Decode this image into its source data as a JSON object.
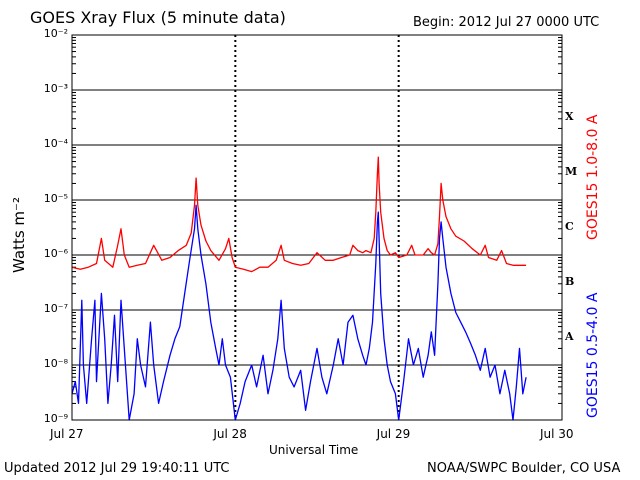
{
  "title": "GOES Xray Flux (5 minute data)",
  "begin_label": "Begin:  2012 Jul 27 0000 UTC",
  "updated_label": "Updated 2012 Jul 29 19:40:11 UTC",
  "credit_label": "NOAA/SWPC Boulder, CO USA",
  "chart_data": {
    "type": "line",
    "title": "GOES Xray Flux (5 minute data)",
    "xlabel": "Universal Time",
    "ylabel": "Watts m⁻²",
    "y_scale": "log",
    "ylim": [
      1e-09,
      0.01
    ],
    "xlim": [
      0,
      3
    ],
    "x_unit": "days since 2012 Jul 27 0000 UTC",
    "x_ticks": [
      {
        "x": 0,
        "label": "Jul 27"
      },
      {
        "x": 1,
        "label": "Jul 28"
      },
      {
        "x": 2,
        "label": "Jul 29"
      },
      {
        "x": 3,
        "label": "Jul 30"
      }
    ],
    "y_ticks": [
      {
        "exp": -2,
        "label": "10⁻²"
      },
      {
        "exp": -3,
        "label": "10⁻³"
      },
      {
        "exp": -4,
        "label": "10⁻⁴"
      },
      {
        "exp": -5,
        "label": "10⁻⁵"
      },
      {
        "exp": -6,
        "label": "10⁻⁶"
      },
      {
        "exp": -7,
        "label": "10⁻⁷"
      },
      {
        "exp": -8,
        "label": "10⁻⁸"
      },
      {
        "exp": -9,
        "label": "10⁻⁹"
      }
    ],
    "flare_classes": [
      {
        "label": "X",
        "exp": -3.5
      },
      {
        "label": "M",
        "exp": -4.5
      },
      {
        "label": "C",
        "exp": -5.5
      },
      {
        "label": "B",
        "exp": -6.5
      },
      {
        "label": "A",
        "exp": -7.5
      }
    ],
    "series": [
      {
        "name": "GOES15 1.0-8.0 A",
        "color": "#ff0000",
        "points": [
          [
            0.0,
            6e-07
          ],
          [
            0.05,
            5.5e-07
          ],
          [
            0.1,
            6e-07
          ],
          [
            0.15,
            7e-07
          ],
          [
            0.18,
            2e-06
          ],
          [
            0.2,
            8e-07
          ],
          [
            0.25,
            6e-07
          ],
          [
            0.28,
            1.5e-06
          ],
          [
            0.3,
            3e-06
          ],
          [
            0.32,
            1e-06
          ],
          [
            0.35,
            6e-07
          ],
          [
            0.4,
            6.5e-07
          ],
          [
            0.45,
            7e-07
          ],
          [
            0.5,
            1.5e-06
          ],
          [
            0.55,
            8e-07
          ],
          [
            0.6,
            9e-07
          ],
          [
            0.65,
            1.2e-06
          ],
          [
            0.7,
            1.5e-06
          ],
          [
            0.73,
            2.5e-06
          ],
          [
            0.75,
            8e-06
          ],
          [
            0.76,
            2.5e-05
          ],
          [
            0.77,
            8e-06
          ],
          [
            0.79,
            3.5e-06
          ],
          [
            0.82,
            1.8e-06
          ],
          [
            0.85,
            1.2e-06
          ],
          [
            0.9,
            8e-07
          ],
          [
            0.94,
            1.3e-06
          ],
          [
            0.96,
            2e-06
          ],
          [
            0.98,
            9e-07
          ],
          [
            1.0,
            6e-07
          ],
          [
            1.05,
            5.5e-07
          ],
          [
            1.1,
            5e-07
          ],
          [
            1.15,
            6e-07
          ],
          [
            1.2,
            6e-07
          ],
          [
            1.25,
            8e-07
          ],
          [
            1.28,
            1.5e-06
          ],
          [
            1.3,
            8e-07
          ],
          [
            1.35,
            7e-07
          ],
          [
            1.4,
            6.5e-07
          ],
          [
            1.45,
            7e-07
          ],
          [
            1.5,
            1.1e-06
          ],
          [
            1.55,
            8e-07
          ],
          [
            1.6,
            8e-07
          ],
          [
            1.65,
            9e-07
          ],
          [
            1.7,
            1e-06
          ],
          [
            1.72,
            1.5e-06
          ],
          [
            1.75,
            1.2e-06
          ],
          [
            1.78,
            1.1e-06
          ],
          [
            1.8,
            1.2e-06
          ],
          [
            1.83,
            1.1e-06
          ],
          [
            1.85,
            2e-06
          ],
          [
            1.86,
            6e-06
          ],
          [
            1.87,
            3e-05
          ],
          [
            1.875,
            6e-05
          ],
          [
            1.88,
            2e-05
          ],
          [
            1.89,
            6e-06
          ],
          [
            1.91,
            2e-06
          ],
          [
            1.93,
            1.2e-06
          ],
          [
            1.95,
            1e-06
          ],
          [
            1.98,
            1.1e-06
          ],
          [
            2.0,
            9e-07
          ],
          [
            2.05,
            1e-06
          ],
          [
            2.08,
            1.5e-06
          ],
          [
            2.1,
            1e-06
          ],
          [
            2.15,
            1e-06
          ],
          [
            2.18,
            1.3e-06
          ],
          [
            2.2,
            1.1e-06
          ],
          [
            2.22,
            1e-06
          ],
          [
            2.24,
            1.6e-06
          ],
          [
            2.25,
            5e-06
          ],
          [
            2.26,
            2e-05
          ],
          [
            2.27,
            1e-05
          ],
          [
            2.29,
            5e-06
          ],
          [
            2.32,
            3e-06
          ],
          [
            2.35,
            2.2e-06
          ],
          [
            2.4,
            1.8e-06
          ],
          [
            2.45,
            1.3e-06
          ],
          [
            2.5,
            1e-06
          ],
          [
            2.53,
            1.5e-06
          ],
          [
            2.55,
            9e-07
          ],
          [
            2.6,
            8e-07
          ],
          [
            2.63,
            1.2e-06
          ],
          [
            2.66,
            7e-07
          ],
          [
            2.7,
            6.5e-07
          ],
          [
            2.75,
            6.5e-07
          ],
          [
            2.78,
            6.5e-07
          ]
        ]
      },
      {
        "name": "GOES15 0.5-4.0 A",
        "color": "#0000ff",
        "points": [
          [
            0.0,
            3e-09
          ],
          [
            0.02,
            5e-09
          ],
          [
            0.04,
            2e-09
          ],
          [
            0.06,
            1.5e-07
          ],
          [
            0.07,
            1e-08
          ],
          [
            0.09,
            2e-09
          ],
          [
            0.12,
            3e-08
          ],
          [
            0.14,
            1.5e-07
          ],
          [
            0.15,
            5e-09
          ],
          [
            0.18,
            2e-07
          ],
          [
            0.2,
            3e-08
          ],
          [
            0.22,
            2e-09
          ],
          [
            0.24,
            1e-08
          ],
          [
            0.26,
            8e-08
          ],
          [
            0.28,
            5e-09
          ],
          [
            0.3,
            1.5e-07
          ],
          [
            0.32,
            2e-08
          ],
          [
            0.35,
            1e-09
          ],
          [
            0.38,
            3e-09
          ],
          [
            0.4,
            3e-08
          ],
          [
            0.42,
            1e-08
          ],
          [
            0.45,
            4e-09
          ],
          [
            0.48,
            6e-08
          ],
          [
            0.5,
            1e-08
          ],
          [
            0.53,
            2e-09
          ],
          [
            0.56,
            5e-09
          ],
          [
            0.6,
            1.5e-08
          ],
          [
            0.63,
            3e-08
          ],
          [
            0.66,
            5e-08
          ],
          [
            0.69,
            2e-07
          ],
          [
            0.72,
            8e-07
          ],
          [
            0.75,
            3e-06
          ],
          [
            0.76,
            8e-06
          ],
          [
            0.77,
            3e-06
          ],
          [
            0.79,
            1e-06
          ],
          [
            0.82,
            3e-07
          ],
          [
            0.85,
            6e-08
          ],
          [
            0.88,
            2e-08
          ],
          [
            0.9,
            1e-08
          ],
          [
            0.92,
            3e-08
          ],
          [
            0.94,
            1e-08
          ],
          [
            0.97,
            6e-09
          ],
          [
            1.0,
            1e-09
          ],
          [
            1.03,
            2e-09
          ],
          [
            1.06,
            5e-09
          ],
          [
            1.1,
            1e-08
          ],
          [
            1.13,
            4e-09
          ],
          [
            1.17,
            1.5e-08
          ],
          [
            1.2,
            3e-09
          ],
          [
            1.23,
            8e-09
          ],
          [
            1.26,
            3e-08
          ],
          [
            1.28,
            1.5e-07
          ],
          [
            1.3,
            2e-08
          ],
          [
            1.33,
            6e-09
          ],
          [
            1.36,
            4e-09
          ],
          [
            1.4,
            8e-09
          ],
          [
            1.43,
            1.5e-09
          ],
          [
            1.46,
            5e-09
          ],
          [
            1.5,
            2e-08
          ],
          [
            1.53,
            6e-09
          ],
          [
            1.56,
            3e-09
          ],
          [
            1.6,
            1e-08
          ],
          [
            1.63,
            3e-08
          ],
          [
            1.66,
            1e-08
          ],
          [
            1.69,
            6e-08
          ],
          [
            1.72,
            8e-08
          ],
          [
            1.75,
            3e-08
          ],
          [
            1.78,
            1.5e-08
          ],
          [
            1.8,
            1e-08
          ],
          [
            1.82,
            2e-08
          ],
          [
            1.84,
            6e-08
          ],
          [
            1.86,
            7e-07
          ],
          [
            1.87,
            4e-06
          ],
          [
            1.875,
            6e-06
          ],
          [
            1.88,
            2e-06
          ],
          [
            1.89,
            2e-07
          ],
          [
            1.91,
            3e-08
          ],
          [
            1.93,
            1e-08
          ],
          [
            1.95,
            5e-09
          ],
          [
            1.98,
            3e-09
          ],
          [
            2.0,
            1e-09
          ],
          [
            2.03,
            5e-09
          ],
          [
            2.06,
            3e-08
          ],
          [
            2.09,
            1e-08
          ],
          [
            2.12,
            2e-08
          ],
          [
            2.15,
            6e-09
          ],
          [
            2.18,
            1.5e-08
          ],
          [
            2.2,
            4e-08
          ],
          [
            2.22,
            1.5e-08
          ],
          [
            2.24,
            3e-07
          ],
          [
            2.25,
            2e-06
          ],
          [
            2.26,
            4e-06
          ],
          [
            2.27,
            2e-06
          ],
          [
            2.29,
            6e-07
          ],
          [
            2.32,
            2e-07
          ],
          [
            2.35,
            9e-08
          ],
          [
            2.38,
            6e-08
          ],
          [
            2.41,
            4e-08
          ],
          [
            2.44,
            2.5e-08
          ],
          [
            2.47,
            1.5e-08
          ],
          [
            2.5,
            8e-09
          ],
          [
            2.53,
            2e-08
          ],
          [
            2.56,
            6e-09
          ],
          [
            2.59,
            1e-08
          ],
          [
            2.62,
            3e-09
          ],
          [
            2.65,
            8e-09
          ],
          [
            2.68,
            3e-09
          ],
          [
            2.7,
            1e-09
          ],
          [
            2.72,
            4e-09
          ],
          [
            2.74,
            2e-08
          ],
          [
            2.76,
            3e-09
          ],
          [
            2.78,
            6e-09
          ]
        ]
      }
    ]
  }
}
